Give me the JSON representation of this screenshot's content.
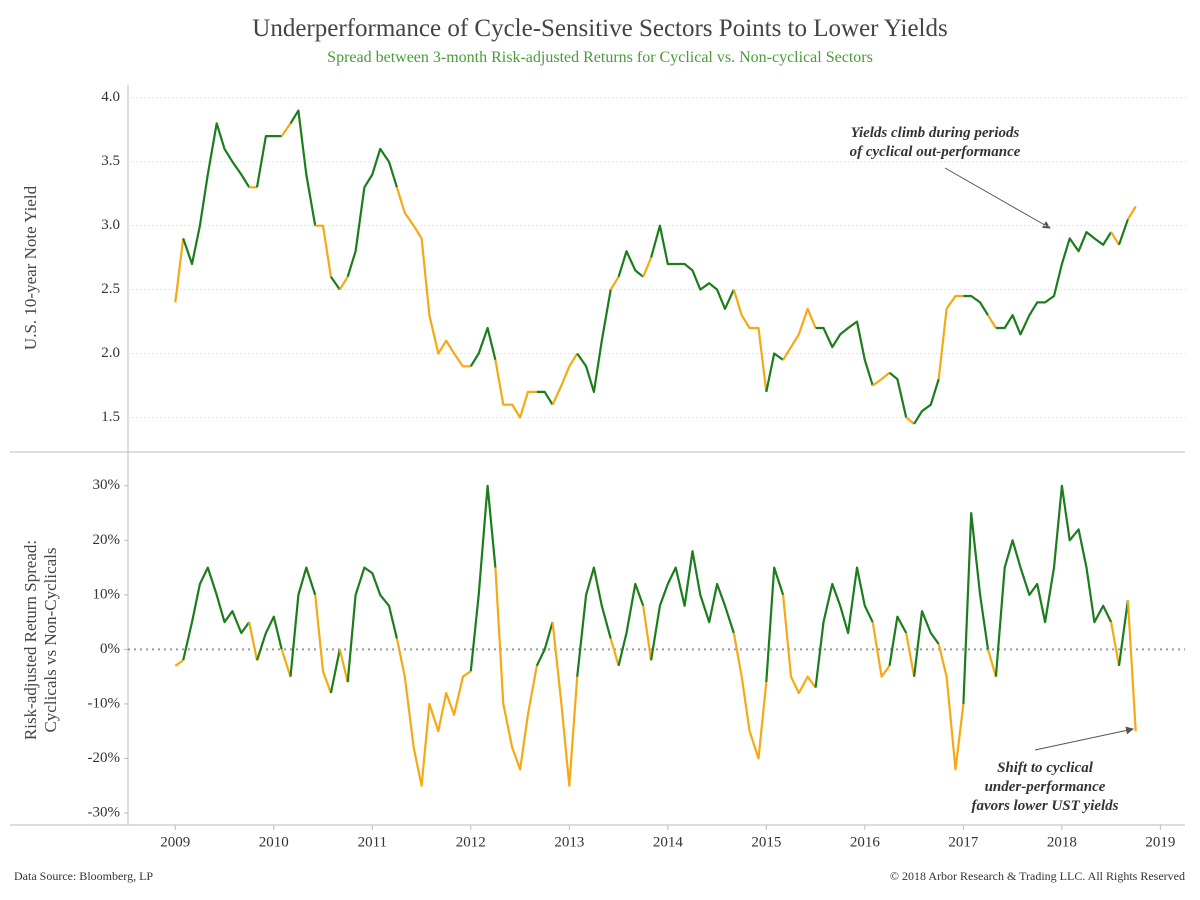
{
  "title": "Underperformance of Cycle-Sensitive Sectors Points to Lower Yields",
  "subtitle": "Spread between 3-month Risk-adjusted Returns for Cyclical vs. Non-cyclical Sectors",
  "source": "Data Source: Bloomberg, LP",
  "copyright": "© 2018 Arbor Research & Trading LLC. All Rights Reserved",
  "line_colors": {
    "positive": "#1b7d1b",
    "negative": "#f7a815"
  },
  "chart_data": [
    {
      "type": "line",
      "y_label": "U.S. 10-year Note Yield",
      "annotation": [
        "Yields climb during periods",
        "of cyclical out-performance"
      ],
      "xlim": [
        2008.52,
        2019.25
      ],
      "ylim": [
        1.23,
        4.1
      ],
      "yticks": [
        1.5,
        {
          "value": 2,
          "label": "2.0"
        },
        2.5,
        {
          "value": 3,
          "label": "3.0"
        },
        3.5,
        {
          "value": 4,
          "label": "4.0"
        }
      ],
      "grid": true,
      "x": [
        2009.0,
        2009.08,
        2009.17,
        2009.25,
        2009.33,
        2009.42,
        2009.5,
        2009.58,
        2009.67,
        2009.75,
        2009.83,
        2009.92,
        2010.0,
        2010.08,
        2010.17,
        2010.25,
        2010.33,
        2010.42,
        2010.5,
        2010.58,
        2010.67,
        2010.75,
        2010.83,
        2010.92,
        2011.0,
        2011.08,
        2011.17,
        2011.25,
        2011.33,
        2011.42,
        2011.5,
        2011.58,
        2011.67,
        2011.75,
        2011.83,
        2011.92,
        2012.0,
        2012.08,
        2012.17,
        2012.25,
        2012.33,
        2012.42,
        2012.5,
        2012.58,
        2012.67,
        2012.75,
        2012.83,
        2012.92,
        2013.0,
        2013.08,
        2013.17,
        2013.25,
        2013.33,
        2013.42,
        2013.5,
        2013.58,
        2013.67,
        2013.75,
        2013.83,
        2013.92,
        2014.0,
        2014.08,
        2014.17,
        2014.25,
        2014.33,
        2014.42,
        2014.5,
        2014.58,
        2014.67,
        2014.75,
        2014.83,
        2014.92,
        2015.0,
        2015.08,
        2015.17,
        2015.25,
        2015.33,
        2015.42,
        2015.5,
        2015.58,
        2015.67,
        2015.75,
        2015.83,
        2015.92,
        2016.0,
        2016.08,
        2016.17,
        2016.25,
        2016.33,
        2016.42,
        2016.5,
        2016.58,
        2016.67,
        2016.75,
        2016.83,
        2016.92,
        2017.0,
        2017.08,
        2017.17,
        2017.25,
        2017.33,
        2017.42,
        2017.5,
        2017.58,
        2017.67,
        2017.75,
        2017.83,
        2017.92,
        2018.0,
        2018.08,
        2018.17,
        2018.25,
        2018.33,
        2018.42,
        2018.5,
        2018.58,
        2018.67,
        2018.75
      ],
      "values": [
        2.4,
        2.9,
        2.7,
        3.0,
        3.4,
        3.8,
        3.6,
        3.5,
        3.4,
        3.3,
        3.3,
        3.7,
        3.7,
        3.7,
        3.8,
        3.9,
        3.4,
        3.0,
        3.0,
        2.6,
        2.5,
        2.6,
        2.8,
        3.3,
        3.4,
        3.6,
        3.5,
        3.3,
        3.1,
        3.0,
        2.9,
        2.3,
        2.0,
        2.1,
        2.0,
        1.9,
        1.9,
        2.0,
        2.2,
        1.95,
        1.6,
        1.6,
        1.5,
        1.7,
        1.7,
        1.7,
        1.6,
        1.75,
        1.9,
        2.0,
        1.9,
        1.7,
        2.1,
        2.5,
        2.6,
        2.8,
        2.65,
        2.6,
        2.75,
        3.0,
        2.7,
        2.7,
        2.7,
        2.65,
        2.5,
        2.55,
        2.5,
        2.35,
        2.5,
        2.3,
        2.2,
        2.2,
        1.7,
        2.0,
        1.95,
        2.05,
        2.15,
        2.35,
        2.2,
        2.2,
        2.05,
        2.15,
        2.2,
        2.25,
        1.95,
        1.75,
        1.8,
        1.85,
        1.8,
        1.5,
        1.45,
        1.55,
        1.6,
        1.8,
        2.35,
        2.45,
        2.45,
        2.45,
        2.4,
        2.3,
        2.2,
        2.2,
        2.3,
        2.15,
        2.3,
        2.4,
        2.4,
        2.45,
        2.7,
        2.9,
        2.8,
        2.95,
        2.9,
        2.85,
        2.95,
        2.85,
        3.05,
        3.15
      ]
    },
    {
      "type": "line",
      "y_label": [
        "Risk-adjusted Return Spread:",
        "Cyclicals vs Non-Cyclicals"
      ],
      "annotation": [
        "Shift to cyclical",
        "under-performance",
        "favors lower UST yields"
      ],
      "xlim": [
        2008.52,
        2019.25
      ],
      "ylim": [
        -32.2,
        36.2
      ],
      "xticks": [
        2009,
        2010,
        2011,
        2012,
        2013,
        2014,
        2015,
        2016,
        2017,
        2018,
        2019
      ],
      "yticks": [
        {
          "value": -30,
          "label": "-30%"
        },
        {
          "value": -20,
          "label": "-20%"
        },
        {
          "value": -10,
          "label": "-10%"
        },
        {
          "value": 0,
          "label": "0%"
        },
        {
          "value": 10,
          "label": "10%"
        },
        {
          "value": 20,
          "label": "20%"
        },
        {
          "value": 30,
          "label": "30%"
        }
      ],
      "reference_line": 0,
      "x": [
        2009.0,
        2009.08,
        2009.17,
        2009.25,
        2009.33,
        2009.42,
        2009.5,
        2009.58,
        2009.67,
        2009.75,
        2009.83,
        2009.92,
        2010.0,
        2010.08,
        2010.17,
        2010.25,
        2010.33,
        2010.42,
        2010.5,
        2010.58,
        2010.67,
        2010.75,
        2010.83,
        2010.92,
        2011.0,
        2011.08,
        2011.17,
        2011.25,
        2011.33,
        2011.42,
        2011.5,
        2011.58,
        2011.67,
        2011.75,
        2011.83,
        2011.92,
        2012.0,
        2012.08,
        2012.17,
        2012.25,
        2012.33,
        2012.42,
        2012.5,
        2012.58,
        2012.67,
        2012.75,
        2012.83,
        2012.92,
        2013.0,
        2013.08,
        2013.17,
        2013.25,
        2013.33,
        2013.42,
        2013.5,
        2013.58,
        2013.67,
        2013.75,
        2013.83,
        2013.92,
        2014.0,
        2014.08,
        2014.17,
        2014.25,
        2014.33,
        2014.42,
        2014.5,
        2014.58,
        2014.67,
        2014.75,
        2014.83,
        2014.92,
        2015.0,
        2015.08,
        2015.17,
        2015.25,
        2015.33,
        2015.42,
        2015.5,
        2015.58,
        2015.67,
        2015.75,
        2015.83,
        2015.92,
        2016.0,
        2016.08,
        2016.17,
        2016.25,
        2016.33,
        2016.42,
        2016.5,
        2016.58,
        2016.67,
        2016.75,
        2016.83,
        2016.92,
        2017.0,
        2017.08,
        2017.17,
        2017.25,
        2017.33,
        2017.42,
        2017.5,
        2017.58,
        2017.67,
        2017.75,
        2017.83,
        2017.92,
        2018.0,
        2018.08,
        2018.17,
        2018.25,
        2018.33,
        2018.42,
        2018.5,
        2018.58,
        2018.67,
        2018.75
      ],
      "values": [
        -3,
        -2,
        5,
        12,
        15,
        10,
        5,
        7,
        3,
        5,
        -2,
        3,
        6,
        0,
        -5,
        10,
        15,
        10,
        -4,
        -8,
        0,
        -6,
        10,
        15,
        14,
        10,
        8,
        2,
        -5,
        -18,
        -25,
        -10,
        -15,
        -8,
        -12,
        -5,
        -4,
        10,
        30,
        15,
        -10,
        -18,
        -22,
        -12,
        -3,
        0,
        5,
        -10,
        -25,
        -5,
        10,
        15,
        8,
        2,
        -3,
        3,
        12,
        8,
        -2,
        8,
        12,
        15,
        8,
        18,
        10,
        5,
        12,
        8,
        3,
        -5,
        -15,
        -20,
        -6,
        15,
        10,
        -5,
        -8,
        -5,
        -7,
        5,
        12,
        8,
        3,
        15,
        8,
        5,
        -5,
        -3,
        6,
        3,
        -5,
        7,
        3,
        1,
        -5,
        -22,
        -10,
        25,
        10,
        0,
        -5,
        15,
        20,
        15,
        10,
        12,
        5,
        15,
        30,
        20,
        22,
        15,
        5,
        8,
        5,
        -3,
        9,
        -15
      ]
    }
  ]
}
